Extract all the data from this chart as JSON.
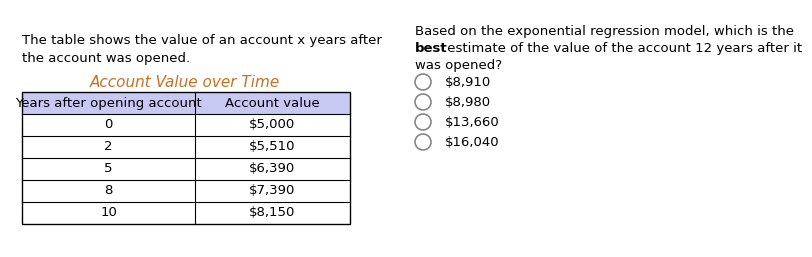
{
  "left_text_line1": "The table shows the value of an account x years after",
  "left_text_line2": "the account was opened.",
  "table_title": "Account Value over Time",
  "table_headers": [
    "Years after opening account",
    "Account value"
  ],
  "table_rows": [
    [
      "0",
      "$5,000"
    ],
    [
      "2",
      "$5,510"
    ],
    [
      "5",
      "$6,390"
    ],
    [
      "8",
      "$7,390"
    ],
    [
      "10",
      "$8,150"
    ]
  ],
  "header_bg": "#c8c8f5",
  "right_q1": "Based on the exponential regression model, which is the",
  "right_q2_bold": "best",
  "right_q2_rest": " estimate of the value of the account 12 years after it",
  "right_q3": "was opened?",
  "options": [
    "$8,910",
    "$8,980",
    "$13,660",
    "$16,040"
  ],
  "bg_color": "#ffffff",
  "border_color": "#000000",
  "title_color": "#c87020",
  "text_color": "#000000",
  "font_size": 9.5,
  "title_font_size": 11
}
